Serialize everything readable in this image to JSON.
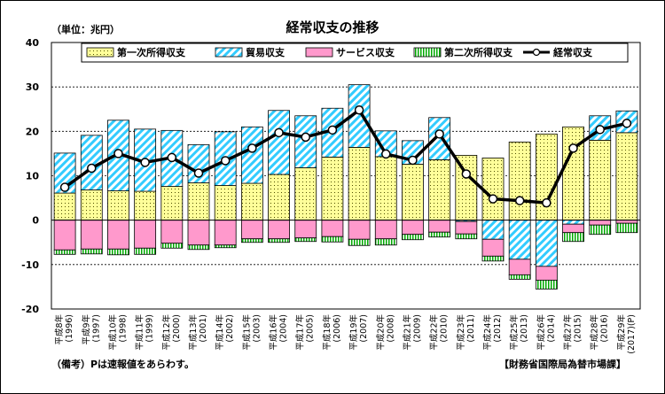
{
  "chart_data": {
    "type": "bar",
    "title": "経常収支の推移",
    "unit_label": "（単位：兆円）",
    "ylim": [
      -20,
      40
    ],
    "yticks": [
      -20,
      -10,
      0,
      10,
      20,
      30,
      40
    ],
    "grid": true,
    "legend_placement": "top",
    "categories": [
      {
        "era": "平成8年",
        "year": "(1996)"
      },
      {
        "era": "平成9年",
        "year": "(1997)"
      },
      {
        "era": "平成10年",
        "year": "(1998)"
      },
      {
        "era": "平成11年",
        "year": "(1999)"
      },
      {
        "era": "平成12年",
        "year": "(2000)"
      },
      {
        "era": "平成13年",
        "year": "(2001)"
      },
      {
        "era": "平成14年",
        "year": "(2002)"
      },
      {
        "era": "平成15年",
        "year": "(2003)"
      },
      {
        "era": "平成16年",
        "year": "(2004)"
      },
      {
        "era": "平成17年",
        "year": "(2005)"
      },
      {
        "era": "平成18年",
        "year": "(2006)"
      },
      {
        "era": "平成19年",
        "year": "(2007)"
      },
      {
        "era": "平成20年",
        "year": "(2008)"
      },
      {
        "era": "平成21年",
        "year": "(2009)"
      },
      {
        "era": "平成22年",
        "year": "(2010)"
      },
      {
        "era": "平成23年",
        "year": "(2011)"
      },
      {
        "era": "平成24年",
        "year": "(2012)"
      },
      {
        "era": "平成25年",
        "year": "(2013)"
      },
      {
        "era": "平成26年",
        "year": "(2014)"
      },
      {
        "era": "平成27年",
        "year": "(2015)"
      },
      {
        "era": "平成28年",
        "year": "(2016)"
      },
      {
        "era": "平成29年",
        "year": "(2017)(P)"
      }
    ],
    "series": [
      {
        "key": "primary",
        "name": "第一次所得収支",
        "type": "bar",
        "values": [
          6.1,
          6.8,
          6.6,
          6.5,
          7.6,
          8.4,
          7.8,
          8.3,
          10.3,
          11.8,
          14.2,
          16.4,
          14.3,
          12.6,
          13.6,
          14.6,
          14.0,
          17.6,
          19.4,
          21.0,
          18.0,
          19.7
        ]
      },
      {
        "key": "trade",
        "name": "貿易収支",
        "type": "bar",
        "values": [
          9.0,
          12.3,
          15.9,
          14.0,
          12.6,
          8.6,
          12.1,
          12.7,
          14.4,
          11.7,
          11.0,
          14.1,
          5.8,
          5.3,
          9.5,
          -0.3,
          -4.3,
          -8.8,
          -10.4,
          -0.9,
          5.5,
          4.9
        ]
      },
      {
        "key": "services",
        "name": "サービス収支",
        "type": "bar",
        "values": [
          -6.7,
          -6.5,
          -6.5,
          -6.3,
          -5.2,
          -5.6,
          -5.6,
          -4.2,
          -4.2,
          -4.0,
          -3.7,
          -4.3,
          -4.2,
          -3.2,
          -2.7,
          -2.8,
          -3.8,
          -3.5,
          -3.1,
          -1.9,
          -1.1,
          -0.7
        ]
      },
      {
        "key": "secondary",
        "name": "第二次所得収支",
        "type": "bar",
        "values": [
          -1.0,
          -1.1,
          -1.3,
          -1.4,
          -1.1,
          -1.0,
          -0.6,
          -0.8,
          -0.8,
          -0.8,
          -1.2,
          -1.4,
          -1.4,
          -1.2,
          -1.1,
          -1.1,
          -1.1,
          -1.0,
          -2.0,
          -2.0,
          -2.1,
          -2.1
        ]
      },
      {
        "key": "current",
        "name": "経常収支",
        "type": "line",
        "values": [
          7.4,
          11.7,
          15.0,
          13.0,
          14.1,
          10.6,
          13.4,
          16.2,
          19.7,
          18.7,
          20.3,
          24.8,
          14.9,
          13.5,
          19.4,
          10.4,
          4.8,
          4.4,
          3.9,
          16.2,
          20.4,
          21.8
        ]
      }
    ],
    "colors": {
      "primary_fill": "#ffff99",
      "primary_dot": "#4d4d00",
      "trade_fill": "#ffffff",
      "trade_stripe": "#33ccff",
      "services_fill": "#ff99cc",
      "secondary_fill": "#ffffff",
      "secondary_stripe": "#00aa00",
      "line": "#000000",
      "marker_fill": "#ffffff"
    }
  },
  "footer": {
    "note": "（備考）Pは速報値をあらわす。",
    "source": "【財務省国際局為替市場課】"
  }
}
